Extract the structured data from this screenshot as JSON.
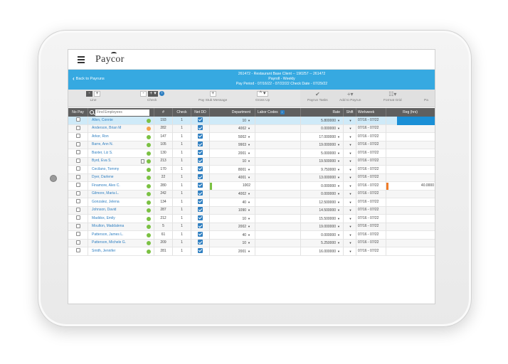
{
  "app": {
    "logo_text": "Paycor"
  },
  "nav": {
    "back_label": "Back to Payruns",
    "back_icon": "chevron-left-icon"
  },
  "payrun_info": {
    "line1": "261472 - Restaurant Base Client -- 190257 -- 261472",
    "line2": "Payroll - Weekly",
    "line3": "Pay Period - 07/16/22 - 07/22/22   Check Date - 07/29/22"
  },
  "toolbar": {
    "line_label": "Line",
    "check_label": "Check",
    "paystub_label": "Pay Stub Message",
    "gross_label": "Gross Up",
    "payrun_tasks_label": "Payrun Tasks",
    "add_to_payrun_label": "Add to Payrun",
    "format_grid_label": "Format Grid",
    "more_label": "Pa",
    "minus": "-",
    "plus": "+",
    "plus_caret": "+ ▾",
    "gross_value": "^ ▾"
  },
  "table": {
    "headers": {
      "nopay": "No Pay",
      "search_placeholder": "Find Employees",
      "num": "#",
      "check": "Check",
      "netdd": "Net DD",
      "department": "Department",
      "labor_codes": "Labor Codes",
      "rate": "Rate",
      "shift": "Shift",
      "workweek": "Workweek",
      "reg": "Reg (hrs)"
    },
    "rows": [
      {
        "name": "Allen, Connie",
        "num": "193",
        "check": "1",
        "dept": "10",
        "rate": "5.800000",
        "workweek": "07/16 - 07/22",
        "status": "green"
      },
      {
        "name": "Anderson, Brian M",
        "num": "282",
        "check": "1",
        "dept": "4002",
        "rate": "0.000000",
        "workweek": "07/16 - 07/22",
        "status": "orange"
      },
      {
        "name": "Arkor, Ron",
        "num": "147",
        "check": "1",
        "dept": "5002",
        "rate": "17.000000",
        "workweek": "07/16 - 07/22",
        "status": "green"
      },
      {
        "name": "Barre, Ann N.",
        "num": "105",
        "check": "1",
        "dept": "9903",
        "rate": "19.000000",
        "workweek": "07/16 - 07/22",
        "status": "green"
      },
      {
        "name": "Baxter, Liz S.",
        "num": "130",
        "check": "1",
        "dept": "2001",
        "rate": "5.000000",
        "workweek": "07/16 - 07/22",
        "status": "green"
      },
      {
        "name": "Byrd, Eva S.",
        "num": "213",
        "check": "1",
        "dept": "10",
        "rate": "19.500000",
        "workweek": "07/16 - 07/22",
        "status": "green"
      },
      {
        "name": "Cecilano, Tommy",
        "num": "170",
        "check": "1",
        "dept": "8001",
        "rate": "9.750000",
        "workweek": "07/16 - 07/22",
        "status": "green"
      },
      {
        "name": "Dyer, Darlene",
        "num": "22",
        "check": "1",
        "dept": "4001",
        "rate": "13.000000",
        "workweek": "07/16 - 07/22",
        "status": "green"
      },
      {
        "name": "Finamore, Alex C.",
        "num": "280",
        "check": "1",
        "dept": "1002",
        "rate": "0.000000",
        "workweek": "07/16 - 07/22",
        "status": "green",
        "reg": "40.0000"
      },
      {
        "name": "Gilmore, Maria L.",
        "num": "242",
        "check": "1",
        "dept": "4002",
        "rate": "0.000000",
        "workweek": "07/16 - 07/22",
        "status": "green"
      },
      {
        "name": "Gonzalez, Jelena",
        "num": "134",
        "check": "1",
        "dept": "40",
        "rate": "12.500000",
        "workweek": "07/16 - 07/22",
        "status": "green"
      },
      {
        "name": "Johnson, David",
        "num": "287",
        "check": "1",
        "dept": "1090",
        "rate": "14.500000",
        "workweek": "07/16 - 07/22",
        "status": "green"
      },
      {
        "name": "Maddox, Emily",
        "num": "212",
        "check": "1",
        "dept": "10",
        "rate": "15.500000",
        "workweek": "07/16 - 07/22",
        "status": "green"
      },
      {
        "name": "Moulton, Maddalena",
        "num": "5",
        "check": "1",
        "dept": "2002",
        "rate": "19.000000",
        "workweek": "07/16 - 07/22",
        "status": "green"
      },
      {
        "name": "Patterson, James L.",
        "num": "61",
        "check": "1",
        "dept": "40",
        "rate": "0.000000",
        "workweek": "07/16 - 07/22",
        "status": "green"
      },
      {
        "name": "Patterson, Michele G.",
        "num": "209",
        "check": "1",
        "dept": "10",
        "rate": "5.250000",
        "workweek": "07/16 - 07/22",
        "status": "green"
      },
      {
        "name": "Smith, Jennifer",
        "num": "281",
        "check": "1",
        "dept": "2001",
        "rate": "16.000000",
        "workweek": "07/16 - 07/22",
        "status": "green"
      }
    ]
  },
  "colors": {
    "brand_blue": "#36a9e1",
    "status_green": "#7bc143",
    "status_orange": "#f5a24b",
    "selected_blue": "#1a8fd6"
  }
}
